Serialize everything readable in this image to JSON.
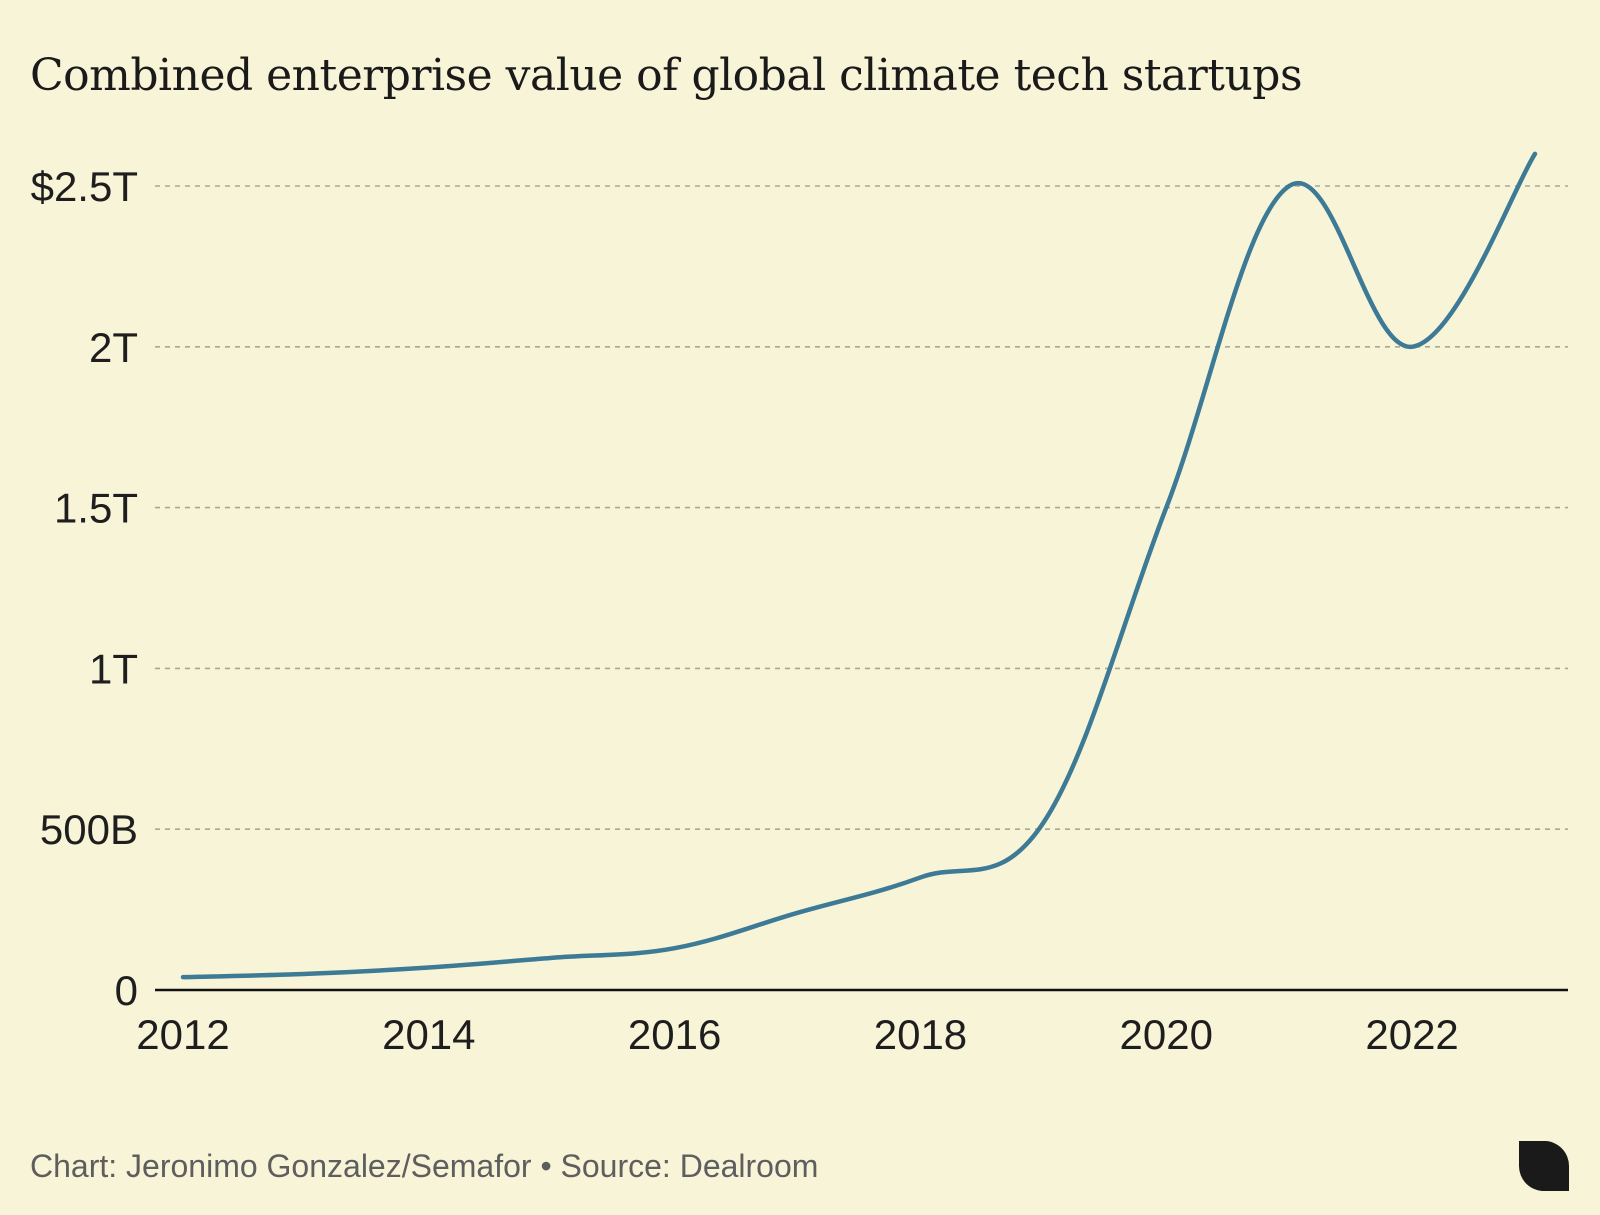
{
  "chart_data": {
    "type": "line",
    "title": "Combined enterprise value of global climate tech startups",
    "xlabel": "",
    "ylabel": "",
    "x": [
      2012,
      2013,
      2014,
      2015,
      2016,
      2017,
      2018,
      2019,
      2020,
      2021,
      2022,
      2023
    ],
    "series": [
      {
        "values": [
          0.04,
          0.05,
          0.07,
          0.1,
          0.13,
          0.24,
          0.35,
          0.52,
          1.5,
          2.5,
          2.0,
          2.6
        ]
      }
    ],
    "xlim": [
      2012,
      2023
    ],
    "ylim": [
      0,
      2.5
    ],
    "x_ticks": [
      2012,
      2014,
      2016,
      2018,
      2020,
      2022
    ],
    "x_tick_labels": [
      "2012",
      "2014",
      "2016",
      "2018",
      "2020",
      "2022"
    ],
    "y_ticks": [
      0,
      0.5,
      1,
      1.5,
      2,
      2.5
    ],
    "y_tick_labels": [
      "0",
      "500B",
      "1T",
      "1.5T",
      "2T",
      "$2.5T"
    ],
    "y_unit": "trillions USD",
    "grid": "horizontal dashed",
    "legend": "none",
    "line_color": "#3d7a96"
  },
  "footer": {
    "credit": "Chart: Jeronimo Gonzalez/Semafor • Source: Dealroom"
  },
  "logo": {
    "icon": "semafor-logo-icon"
  }
}
